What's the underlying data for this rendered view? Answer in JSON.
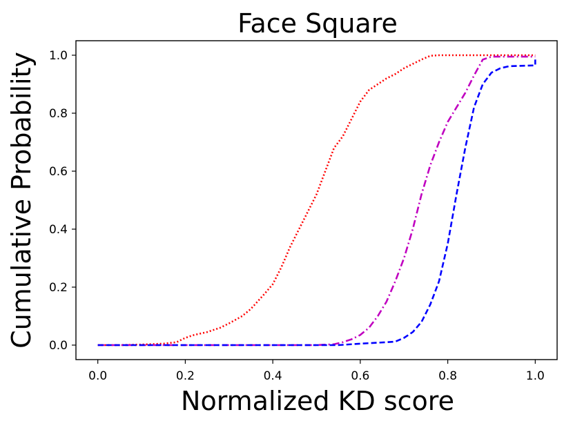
{
  "chart_data": {
    "type": "line",
    "chart_style": "step-cdf",
    "title": "Face Square",
    "xlabel": "Normalized KD score",
    "ylabel": "Cumulative Probability",
    "xlim": [
      -0.05,
      1.05
    ],
    "ylim": [
      -0.05,
      1.05
    ],
    "x_ticks": [
      0.0,
      0.2,
      0.4,
      0.6,
      0.8,
      1.0
    ],
    "x_tick_labels": [
      "0.0",
      "0.2",
      "0.4",
      "0.6",
      "0.8",
      "1.0"
    ],
    "y_ticks": [
      0.0,
      0.2,
      0.4,
      0.6,
      0.8,
      1.0
    ],
    "y_tick_labels": [
      "0.0",
      "0.2",
      "0.4",
      "0.6",
      "0.8",
      "1.0"
    ],
    "grid": false,
    "legend": false,
    "series": [
      {
        "name": "red-dotted",
        "color": "#ff0000",
        "line_style": "dotted",
        "points": [
          [
            0.0,
            0.0
          ],
          [
            0.05,
            0.0
          ],
          [
            0.1,
            0.002
          ],
          [
            0.15,
            0.005
          ],
          [
            0.18,
            0.01
          ],
          [
            0.2,
            0.025
          ],
          [
            0.22,
            0.035
          ],
          [
            0.25,
            0.045
          ],
          [
            0.28,
            0.06
          ],
          [
            0.3,
            0.075
          ],
          [
            0.33,
            0.1
          ],
          [
            0.35,
            0.125
          ],
          [
            0.38,
            0.175
          ],
          [
            0.4,
            0.21
          ],
          [
            0.42,
            0.27
          ],
          [
            0.44,
            0.34
          ],
          [
            0.46,
            0.4
          ],
          [
            0.48,
            0.46
          ],
          [
            0.5,
            0.52
          ],
          [
            0.52,
            0.6
          ],
          [
            0.54,
            0.68
          ],
          [
            0.56,
            0.72
          ],
          [
            0.58,
            0.78
          ],
          [
            0.6,
            0.84
          ],
          [
            0.62,
            0.88
          ],
          [
            0.64,
            0.9
          ],
          [
            0.66,
            0.92
          ],
          [
            0.68,
            0.935
          ],
          [
            0.7,
            0.955
          ],
          [
            0.72,
            0.97
          ],
          [
            0.74,
            0.985
          ],
          [
            0.76,
            0.998
          ],
          [
            0.78,
            1.0
          ],
          [
            1.0,
            1.0
          ]
        ]
      },
      {
        "name": "magenta-dashdot",
        "color": "#c000c0",
        "line_style": "dashdot",
        "points": [
          [
            0.0,
            0.0
          ],
          [
            0.5,
            0.0
          ],
          [
            0.54,
            0.003
          ],
          [
            0.56,
            0.01
          ],
          [
            0.58,
            0.02
          ],
          [
            0.6,
            0.035
          ],
          [
            0.62,
            0.06
          ],
          [
            0.64,
            0.1
          ],
          [
            0.66,
            0.15
          ],
          [
            0.68,
            0.22
          ],
          [
            0.7,
            0.3
          ],
          [
            0.72,
            0.4
          ],
          [
            0.74,
            0.52
          ],
          [
            0.76,
            0.62
          ],
          [
            0.78,
            0.7
          ],
          [
            0.8,
            0.77
          ],
          [
            0.82,
            0.82
          ],
          [
            0.84,
            0.87
          ],
          [
            0.86,
            0.93
          ],
          [
            0.88,
            0.985
          ],
          [
            0.9,
            0.995
          ],
          [
            1.0,
            0.995
          ]
        ]
      },
      {
        "name": "blue-dashed",
        "color": "#0000ff",
        "line_style": "dashed",
        "points": [
          [
            0.0,
            0.0
          ],
          [
            0.55,
            0.0
          ],
          [
            0.6,
            0.005
          ],
          [
            0.66,
            0.01
          ],
          [
            0.68,
            0.012
          ],
          [
            0.7,
            0.025
          ],
          [
            0.72,
            0.045
          ],
          [
            0.74,
            0.08
          ],
          [
            0.76,
            0.14
          ],
          [
            0.78,
            0.22
          ],
          [
            0.8,
            0.35
          ],
          [
            0.82,
            0.52
          ],
          [
            0.84,
            0.68
          ],
          [
            0.86,
            0.82
          ],
          [
            0.88,
            0.9
          ],
          [
            0.9,
            0.94
          ],
          [
            0.92,
            0.955
          ],
          [
            0.94,
            0.962
          ],
          [
            1.0,
            0.965
          ],
          [
            1.0,
            0.985
          ]
        ]
      }
    ]
  }
}
